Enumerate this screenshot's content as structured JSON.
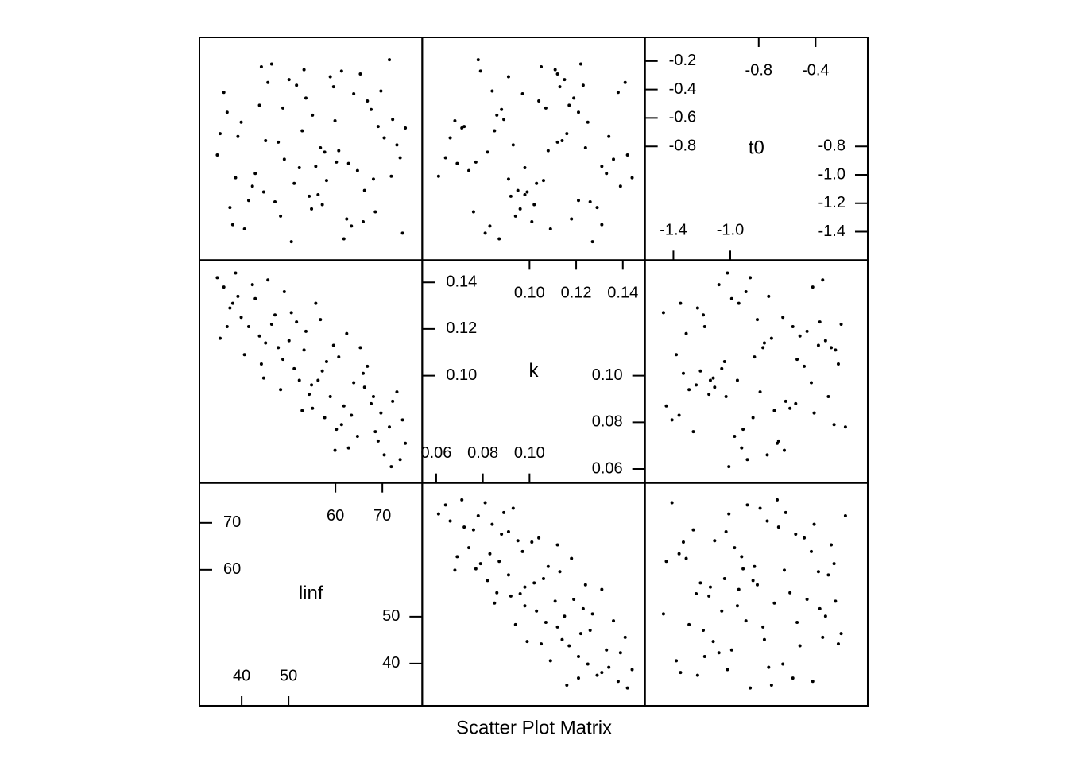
{
  "chart_data": {
    "type": "splom",
    "title": "Scatter Plot Matrix",
    "color": "#000000",
    "variables": [
      {
        "name": "linf",
        "lim": [
          31,
          78.5
        ],
        "ticks_bottom": [
          40,
          50
        ],
        "ticks_left": [
          60,
          70
        ],
        "ticks_top": [
          60,
          70
        ],
        "ticks_right": [
          40,
          50
        ],
        "values": [
          36.2,
          41.5,
          47.8,
          52.3,
          58.9,
          63.4,
          69.1,
          73.8,
          38.7,
          44.2,
          50.6,
          55.1,
          60.7,
          66.2,
          71.5,
          35.4,
          42.9,
          48.3,
          53.7,
          57.2,
          62.8,
          67.6,
          74.3,
          39.9,
          45.6,
          51.2,
          56.8,
          61.3,
          65.9,
          70.4,
          37.5,
          43.8,
          49.1,
          54.4,
          59.6,
          64.7,
          72.2,
          34.8,
          40.6,
          46.4,
          52.9,
          58.1,
          63.9,
          68.5,
          73.1,
          36.9,
          44.7,
          50.1,
          55.8,
          61.8,
          66.8,
          71.9,
          39.2,
          47.1,
          53.3,
          57.7,
          62.4,
          69.7,
          74.9,
          42.3,
          48.8,
          54.9,
          60.2,
          65.3,
          38.1,
          45.1,
          51.7,
          56.3,
          59.9,
          68.1
        ]
      },
      {
        "name": "k",
        "lim": [
          0.054,
          0.1495
        ],
        "ticks_bottom": [
          0.06,
          0.08,
          {
            "value": 0.1,
            "label": "0.10"
          }
        ],
        "ticks_left": [
          {
            "value": 0.1,
            "label": "0.10"
          },
          0.12,
          0.14
        ],
        "ticks_top": [
          {
            "value": 0.1,
            "label": "0.10"
          },
          0.12,
          0.14
        ],
        "ticks_right": [
          0.06,
          0.08,
          {
            "value": 0.1,
            "label": "0.10"
          }
        ],
        "values": [
          0.138,
          0.121,
          0.112,
          0.098,
          0.091,
          0.083,
          0.072,
          0.064,
          0.144,
          0.105,
          0.127,
          0.086,
          0.108,
          0.095,
          0.078,
          0.116,
          0.133,
          0.094,
          0.119,
          0.102,
          0.069,
          0.088,
          0.081,
          0.125,
          0.141,
          0.103,
          0.124,
          0.079,
          0.101,
          0.066,
          0.129,
          0.117,
          0.136,
          0.092,
          0.113,
          0.074,
          0.089,
          0.142,
          0.109,
          0.122,
          0.085,
          0.106,
          0.097,
          0.076,
          0.093,
          0.121,
          0.099,
          0.115,
          0.131,
          0.087,
          0.104,
          0.061,
          0.134,
          0.126,
          0.111,
          0.082,
          0.118,
          0.084,
          0.071,
          0.139,
          0.107,
          0.096,
          0.077,
          0.112,
          0.131,
          0.114,
          0.123,
          0.098,
          0.068,
          0.091
        ]
      },
      {
        "name": "t0",
        "lim": [
          -1.6,
          -0.033
        ],
        "ticks_bottom": [
          -1.4,
          {
            "value": -1,
            "label": "-1.0"
          }
        ],
        "ticks_left": [
          -0.8,
          -0.6,
          -0.4,
          -0.2
        ],
        "ticks_top": [
          -0.8,
          -0.4
        ],
        "ticks_right": [
          -1.4,
          -1.2,
          {
            "value": -1,
            "label": "-1.0"
          },
          -0.8
        ],
        "values": [
          -0.42,
          -1.18,
          -0.77,
          -0.95,
          -0.31,
          -1.36,
          -0.66,
          -0.88,
          -1.02,
          -0.24,
          -1.47,
          -0.58,
          -0.83,
          -1.11,
          -0.19,
          -0.71,
          -0.99,
          -1.29,
          -0.46,
          -1.21,
          -0.92,
          -0.54,
          -1.41,
          -0.63,
          -0.35,
          -1.06,
          -0.81,
          -0.27,
          -1.33,
          -0.74,
          -1.23,
          -0.51,
          -0.89,
          -1.15,
          -0.38,
          -0.97,
          -0.61,
          -0.86,
          -1.38,
          -0.22,
          -0.69,
          -1.04,
          -0.43,
          -1.26,
          -0.79,
          -0.56,
          -1.12,
          -0.33,
          -0.94,
          -1.45,
          -0.48,
          -1.01,
          -0.73,
          -1.19,
          -0.26,
          -0.84,
          -1.31,
          -0.41,
          -0.67,
          -1.08,
          -0.53,
          -1.24,
          -0.91,
          -0.29,
          -1.35,
          -0.76,
          -0.37,
          -1.14,
          -0.62,
          -1.03
        ]
      }
    ]
  }
}
